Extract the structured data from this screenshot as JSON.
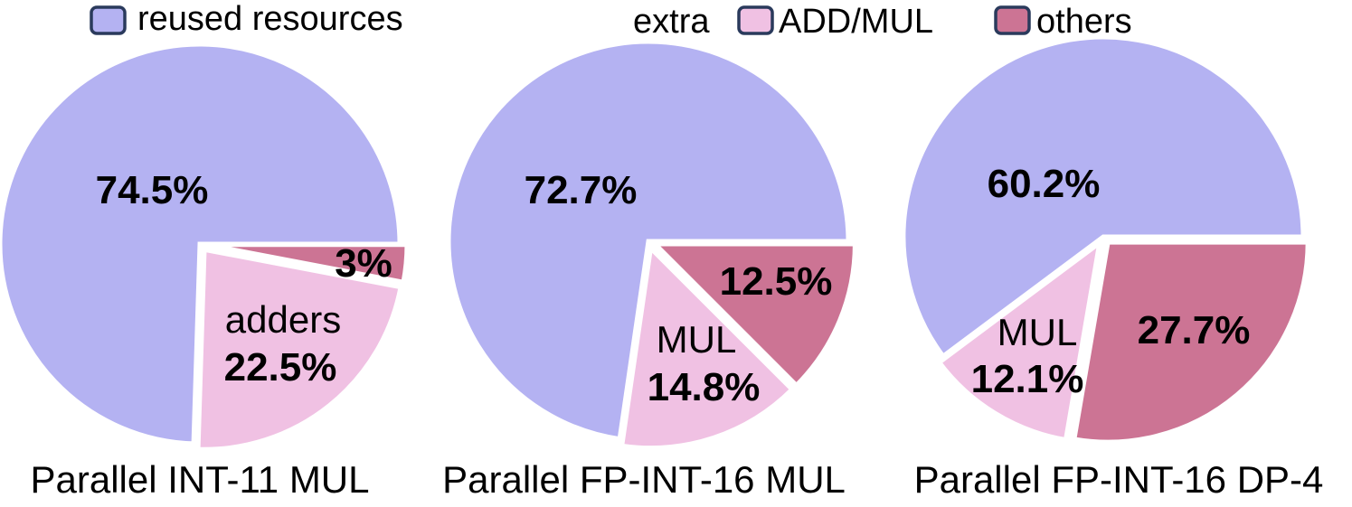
{
  "colors": {
    "reused": "#b4b2f2",
    "addmul": "#f0c1e3",
    "others": "#cc7494",
    "legend_border": "#2a3a5c",
    "separator": "#ffffff"
  },
  "legend": {
    "reused_label": "reused resources",
    "extra_label": "extra",
    "addmul_label": "ADD/MUL",
    "others_label": "others"
  },
  "chart_data": [
    {
      "type": "pie",
      "caption": "Parallel INT-11 MUL",
      "slices": [
        {
          "key": "reused",
          "value": 74.5,
          "label": "74.5%",
          "sublabel": ""
        },
        {
          "key": "addmul",
          "value": 22.5,
          "label": "22.5%",
          "sublabel": "adders"
        },
        {
          "key": "others",
          "value": 3,
          "label": "3%",
          "sublabel": ""
        }
      ]
    },
    {
      "type": "pie",
      "caption": "Parallel FP-INT-16 MUL",
      "slices": [
        {
          "key": "reused",
          "value": 72.7,
          "label": "72.7%",
          "sublabel": ""
        },
        {
          "key": "addmul",
          "value": 14.8,
          "label": "14.8%",
          "sublabel": "MUL"
        },
        {
          "key": "others",
          "value": 12.5,
          "label": "12.5%",
          "sublabel": ""
        }
      ]
    },
    {
      "type": "pie",
      "caption": "Parallel FP-INT-16 DP-4",
      "slices": [
        {
          "key": "reused",
          "value": 60.2,
          "label": "60.2%",
          "sublabel": ""
        },
        {
          "key": "addmul",
          "value": 12.1,
          "label": "12.1%",
          "sublabel": "MUL"
        },
        {
          "key": "others",
          "value": 27.7,
          "label": "27.7%",
          "sublabel": ""
        }
      ]
    }
  ]
}
